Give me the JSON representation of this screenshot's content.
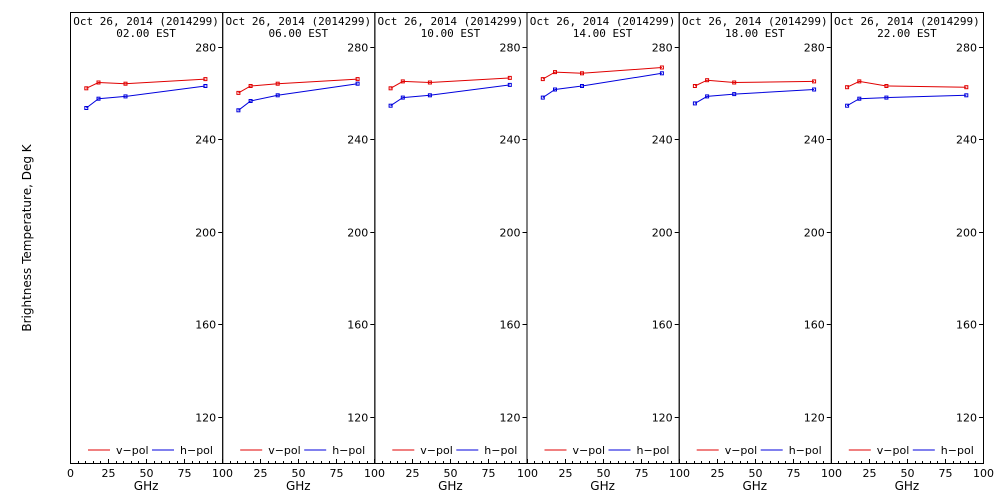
{
  "figure": {
    "ylabel": "Brightness Temperature, Deg K",
    "xlabel": "GHz"
  },
  "colors": {
    "v_pol": "#e00000",
    "h_pol": "#0000dd",
    "axes": "#000000",
    "background": "#ffffff"
  },
  "chart_data": {
    "type": "line",
    "xlabel": "GHz",
    "ylabel": "Brightness Temperature, Deg K",
    "xlim": [
      0,
      100
    ],
    "ylim": [
      100,
      295
    ],
    "x_ticks": [
      {
        "value": 0,
        "label": "0"
      },
      {
        "value": 25,
        "label": "25"
      },
      {
        "value": 50,
        "label": "50"
      },
      {
        "value": 75,
        "label": "75"
      },
      {
        "value": 100,
        "label": "100"
      }
    ],
    "y_ticks": [
      {
        "value": 120,
        "label": "120"
      },
      {
        "value": 160,
        "label": "160"
      },
      {
        "value": 200,
        "label": "200"
      },
      {
        "value": 240,
        "label": "240"
      },
      {
        "value": 280,
        "label": "280"
      }
    ],
    "grid": false,
    "legend": "bottom",
    "legend_labels": [
      "v−pol",
      "h−pol"
    ],
    "panels": [
      {
        "title": "Oct 26, 2014 (2014299)",
        "time": "02.00 EST",
        "series": [
          {
            "name": "v−pol",
            "x": [
              10.7,
              18.7,
              36.5,
              89
            ],
            "y": [
              262,
              264.5,
              264,
              266
            ]
          },
          {
            "name": "h−pol",
            "x": [
              10.7,
              18.7,
              36.5,
              89
            ],
            "y": [
              253.5,
              257.5,
              258.5,
              263
            ]
          }
        ]
      },
      {
        "title": "Oct 26, 2014 (2014299)",
        "time": "06.00 EST",
        "series": [
          {
            "name": "v−pol",
            "x": [
              10.7,
              18.7,
              36.5,
              89
            ],
            "y": [
              260,
              263,
              264,
              266
            ]
          },
          {
            "name": "h−pol",
            "x": [
              10.7,
              18.7,
              36.5,
              89
            ],
            "y": [
              252.5,
              256.5,
              259,
              264
            ]
          }
        ]
      },
      {
        "title": "Oct 26, 2014 (2014299)",
        "time": "10.00 EST",
        "series": [
          {
            "name": "v−pol",
            "x": [
              10.7,
              18.7,
              36.5,
              89
            ],
            "y": [
              262,
              265,
              264.5,
              266.5
            ]
          },
          {
            "name": "h−pol",
            "x": [
              10.7,
              18.7,
              36.5,
              89
            ],
            "y": [
              254.5,
              258,
              259,
              263.5
            ]
          }
        ]
      },
      {
        "title": "Oct 26, 2014 (2014299)",
        "time": "14.00 EST",
        "series": [
          {
            "name": "v−pol",
            "x": [
              10.7,
              18.7,
              36.5,
              89
            ],
            "y": [
              266,
              269,
              268.5,
              271
            ]
          },
          {
            "name": "h−pol",
            "x": [
              10.7,
              18.7,
              36.5,
              89
            ],
            "y": [
              258,
              261.5,
              263,
              268.5
            ]
          }
        ]
      },
      {
        "title": "Oct 26, 2014 (2014299)",
        "time": "18.00 EST",
        "series": [
          {
            "name": "v−pol",
            "x": [
              10.7,
              18.7,
              36.5,
              89
            ],
            "y": [
              263,
              265.5,
              264.5,
              265
            ]
          },
          {
            "name": "h−pol",
            "x": [
              10.7,
              18.7,
              36.5,
              89
            ],
            "y": [
              255.5,
              258.5,
              259.5,
              261.5
            ]
          }
        ]
      },
      {
        "title": "Oct 26, 2014 (2014299)",
        "time": "22.00 EST",
        "series": [
          {
            "name": "v−pol",
            "x": [
              10.7,
              18.7,
              36.5,
              89
            ],
            "y": [
              262.5,
              265,
              263,
              262.5
            ]
          },
          {
            "name": "h−pol",
            "x": [
              10.7,
              18.7,
              36.5,
              89
            ],
            "y": [
              254.5,
              257.5,
              258,
              259
            ]
          }
        ]
      }
    ]
  }
}
